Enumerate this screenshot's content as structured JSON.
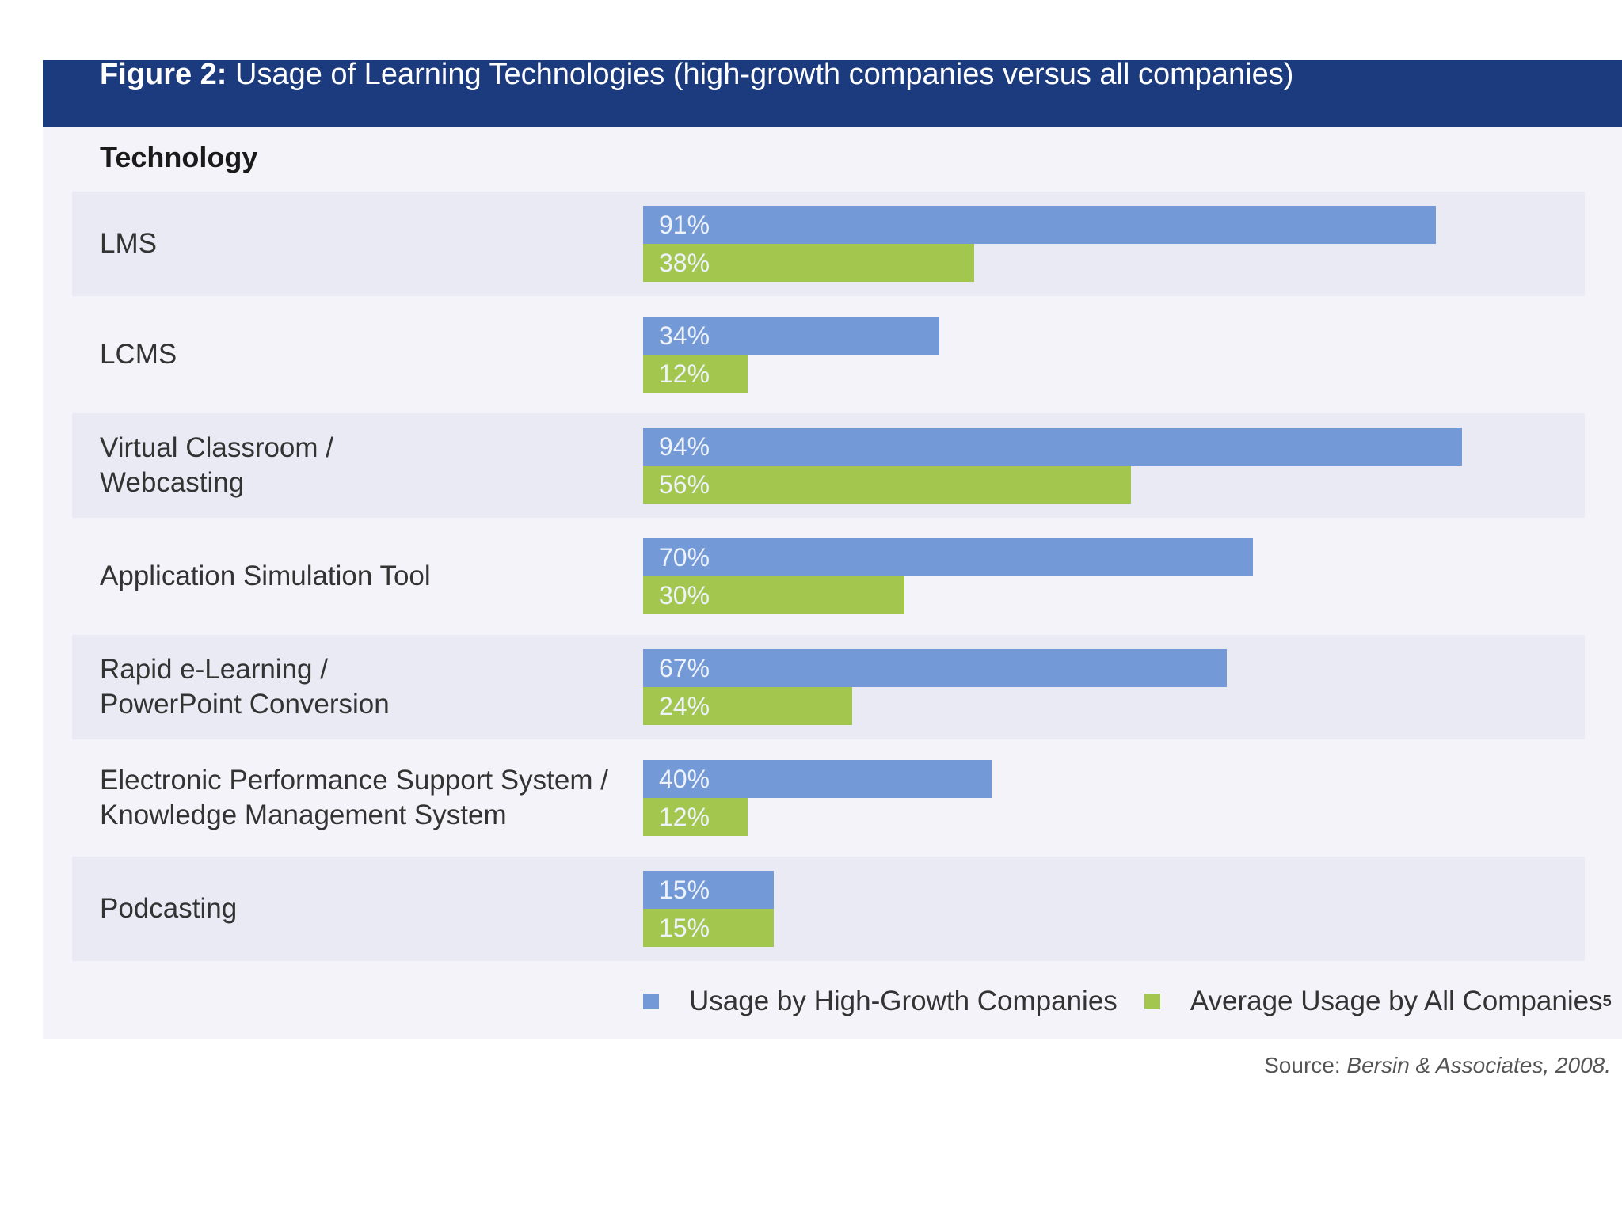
{
  "header": {
    "figure_number": "Figure 2:",
    "title": "Usage of Learning Technologies (high-growth companies versus all companies)"
  },
  "column_header": "Technology",
  "chart_data": {
    "type": "bar",
    "orientation": "horizontal",
    "title": "Figure 2: Usage of Learning Technologies (high-growth companies versus all companies)",
    "xlabel": "",
    "ylabel": "Technology",
    "xlim": [
      0,
      100
    ],
    "categories": [
      "LMS",
      "LCMS",
      "Virtual Classroom / Webcasting",
      "Application Simulation Tool",
      "Rapid e-Learning / PowerPoint Conversion",
      "Electronic Performance Support System / Knowledge Management System",
      "Podcasting"
    ],
    "category_lines": [
      [
        "LMS"
      ],
      [
        "LCMS"
      ],
      [
        "Virtual Classroom /",
        "Webcasting"
      ],
      [
        "Application Simulation Tool"
      ],
      [
        "Rapid e-Learning /",
        "PowerPoint Conversion"
      ],
      [
        "Electronic Performance Support System /",
        "Knowledge Management System"
      ],
      [
        "Podcasting"
      ]
    ],
    "series": [
      {
        "name": "Usage by High-Growth Companies",
        "color": "#739ad6",
        "values": [
          91,
          34,
          94,
          70,
          67,
          40,
          15
        ],
        "labels": [
          "91%",
          "34%",
          "94%",
          "70%",
          "67%",
          "40%",
          "15%"
        ]
      },
      {
        "name": "Average Usage by All Companies",
        "color": "#a2c64e",
        "values": [
          38,
          12,
          56,
          30,
          24,
          12,
          15
        ],
        "labels": [
          "38%",
          "12%",
          "56%",
          "30%",
          "24%",
          "12%",
          "15%"
        ]
      }
    ],
    "legend": {
      "placement": "bottom-right",
      "items": [
        "Usage by High-Growth Companies",
        "Average Usage by All Companies"
      ],
      "footnote_marker": "5"
    }
  },
  "source": {
    "prefix": "Source:",
    "citation": "Bersin & Associates, 2008."
  },
  "colors": {
    "header_bg": "#1c3a7e",
    "panel_bg": "#f3f3f9",
    "band_shade": "#e9eaf4",
    "blue": "#739ad6",
    "green": "#a2c64e"
  }
}
